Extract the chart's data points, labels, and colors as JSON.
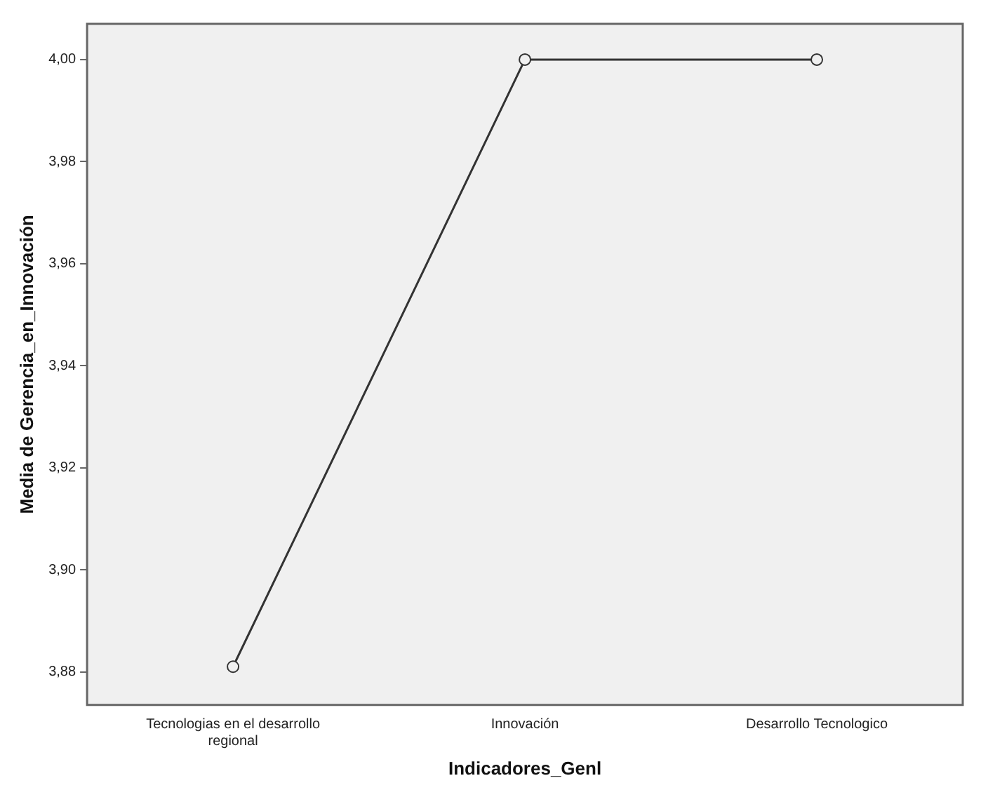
{
  "chart_data": {
    "type": "line",
    "xlabel": "Indicadores_Genl",
    "ylabel": "Media de Gerencia_en_Innovación",
    "categories": [
      "Tecnologias en el desarrollo regional",
      "Innovación",
      "Desarrollo Tecnologico"
    ],
    "series": [
      {
        "color": "#333333",
        "values": [
          3.881,
          4.0,
          4.0
        ]
      }
    ],
    "ylim": [
      3.8735,
      4.007
    ],
    "yticks": [
      {
        "value": 3.88,
        "label": "3,88"
      },
      {
        "value": 3.9,
        "label": "3,90"
      },
      {
        "value": 3.92,
        "label": "3,92"
      },
      {
        "value": 3.94,
        "label": "3,94"
      },
      {
        "value": 3.96,
        "label": "3,96"
      },
      {
        "value": 3.98,
        "label": "3,98"
      },
      {
        "value": 4.0,
        "label": "4,00"
      }
    ],
    "grid": false,
    "legend": false,
    "marker": "circle",
    "line_style": "solid"
  }
}
